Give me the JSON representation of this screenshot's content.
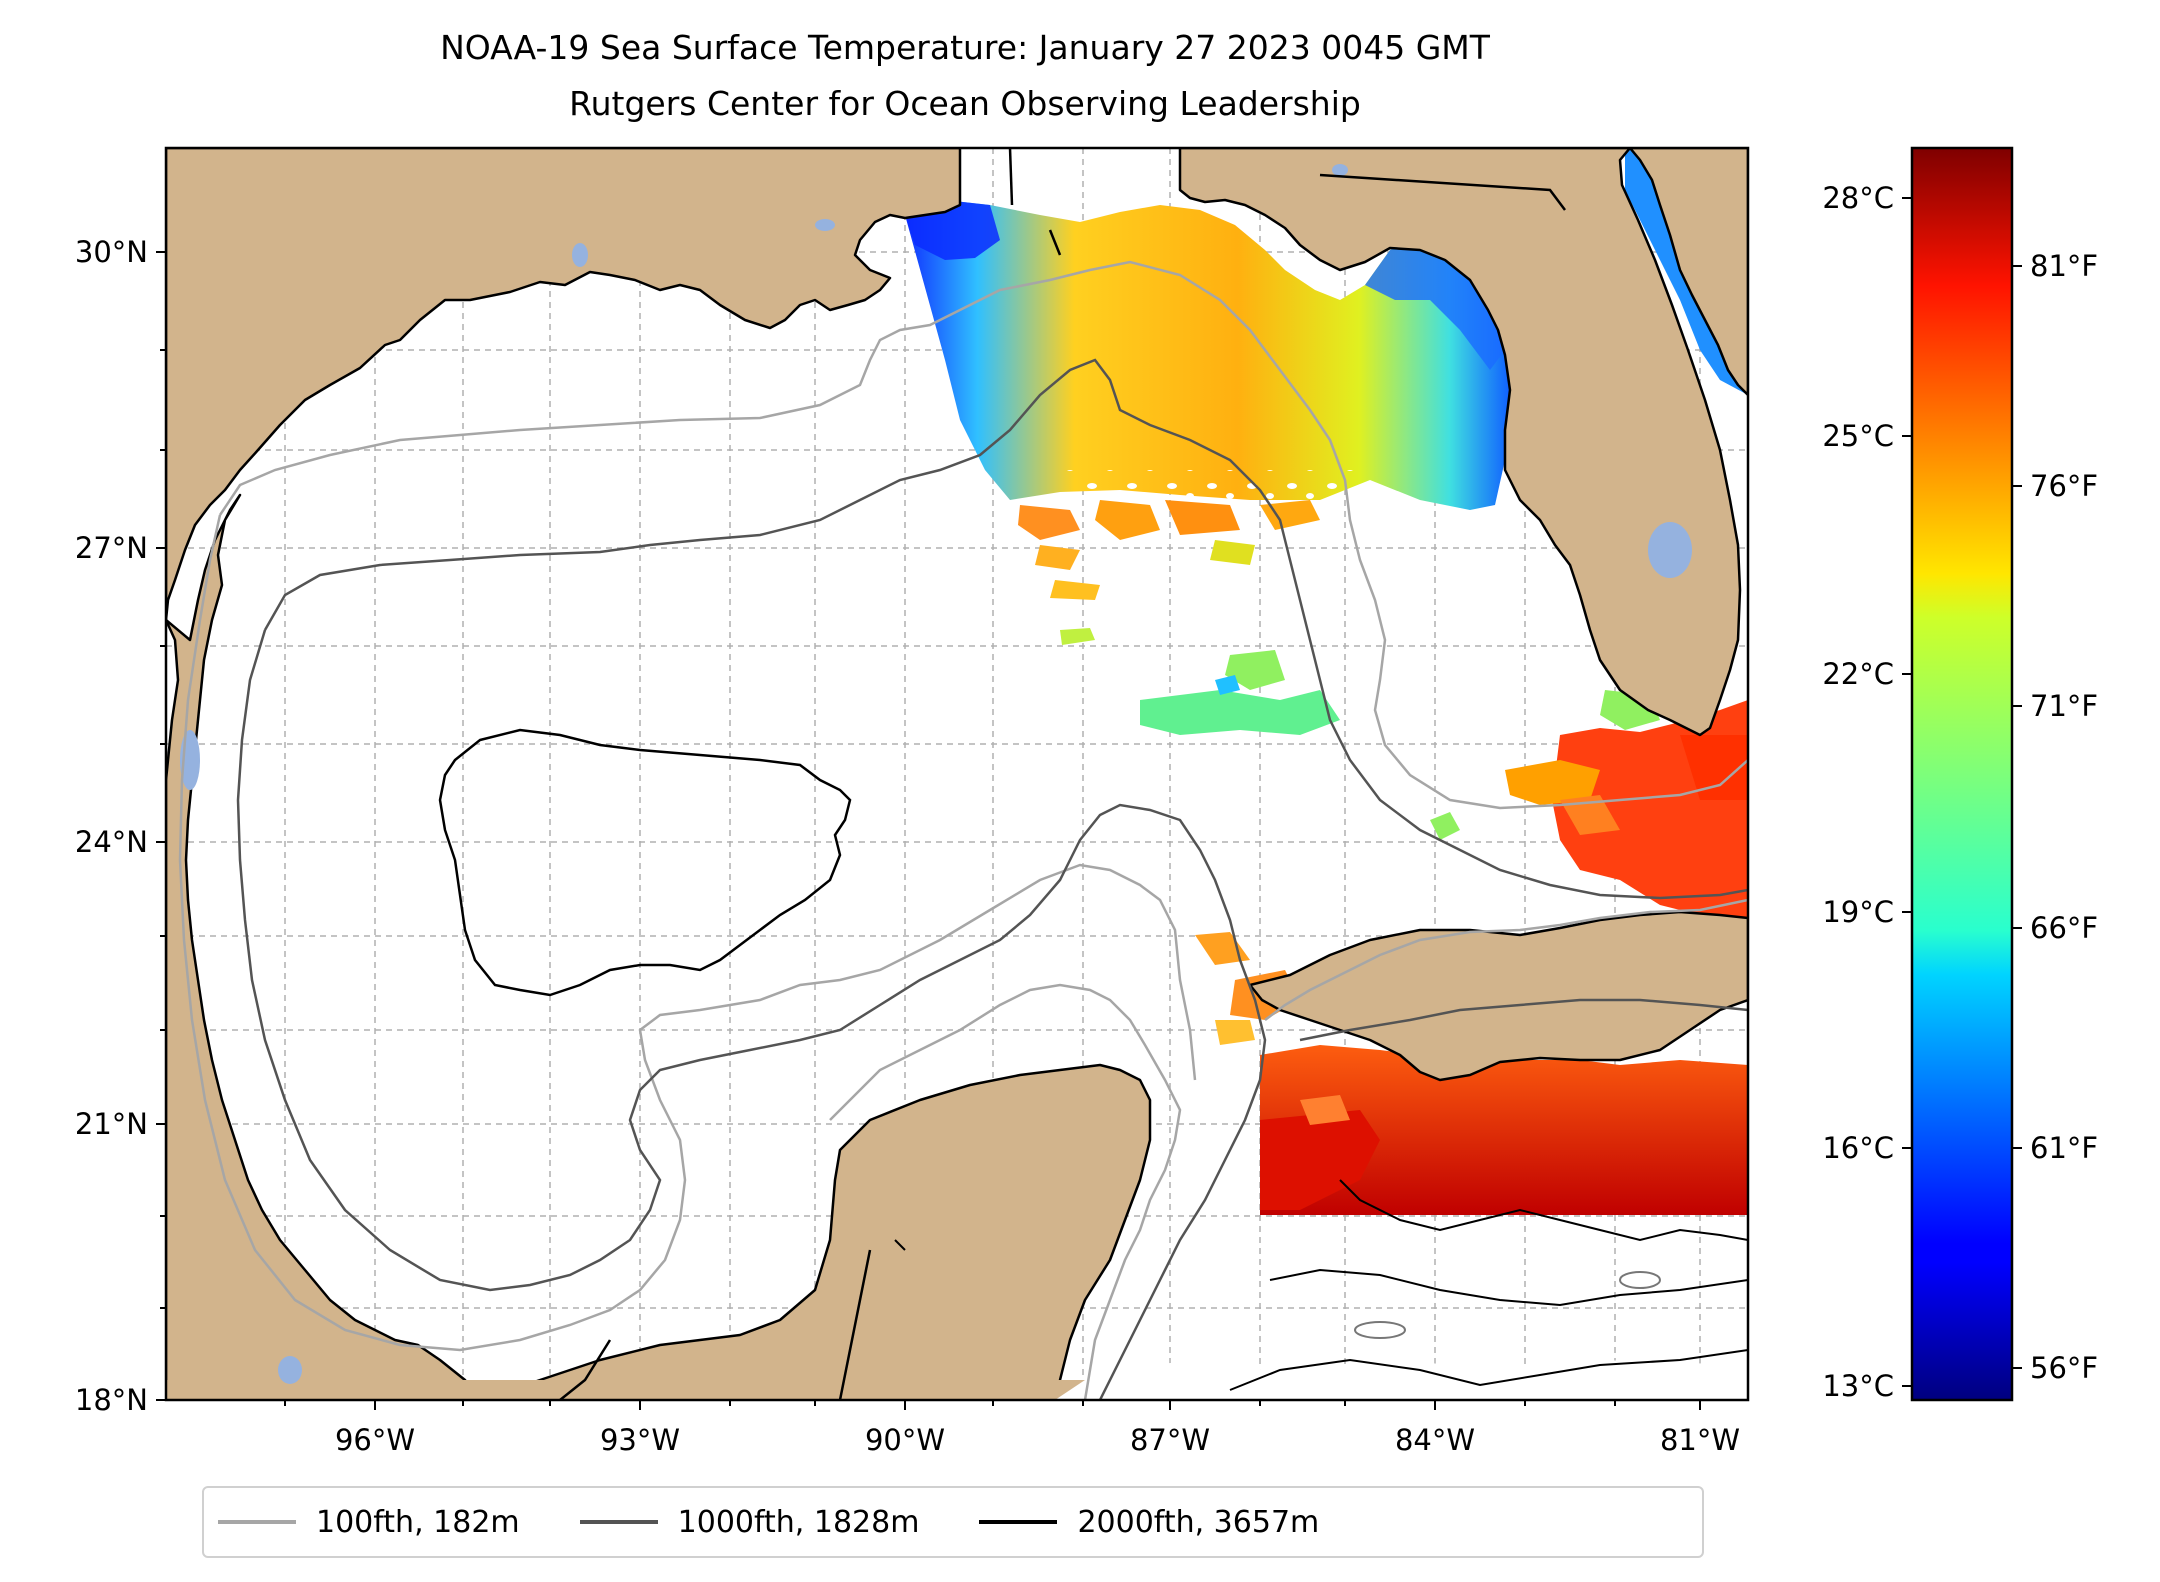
{
  "title": {
    "line1": "NOAA-19 Sea Surface Temperature: January 27 2023 0045 GMT",
    "line2": "Rutgers Center for Ocean Observing Leadership"
  },
  "map": {
    "region": "Gulf of Mexico",
    "projection": "Mercator",
    "lon_range": [
      -98.0,
      -79.5
    ],
    "lat_range": [
      18.0,
      31.0
    ],
    "lat_labels": [
      "30°N",
      "27°N",
      "24°N",
      "21°N",
      "18°N"
    ],
    "lon_labels": [
      "96°W",
      "93°W",
      "90°W",
      "87°W",
      "84°W",
      "81°W"
    ],
    "colors": {
      "land": "#d2b48c",
      "water_no_data": "#ffffff",
      "lakes": "#95b2df",
      "grid": "#b0b0b0",
      "contour_100fth": "#a6a6a6",
      "contour_1000fth": "#545454",
      "contour_2000fth": "#000000"
    }
  },
  "legend": {
    "items": [
      {
        "label": "100fth, 182m",
        "color": "#a6a6a6"
      },
      {
        "label": "1000fth, 1828m",
        "color": "#545454"
      },
      {
        "label": "2000fth, 3657m",
        "color": "#000000"
      }
    ]
  },
  "colorbar": {
    "colormap": "jet",
    "celsius_ticks": [
      "28°C",
      "25°C",
      "22°C",
      "19°C",
      "16°C",
      "13°C"
    ],
    "fahrenheit_ticks": [
      "81°F",
      "76°F",
      "71°F",
      "66°F",
      "61°F",
      "56°F"
    ]
  }
}
